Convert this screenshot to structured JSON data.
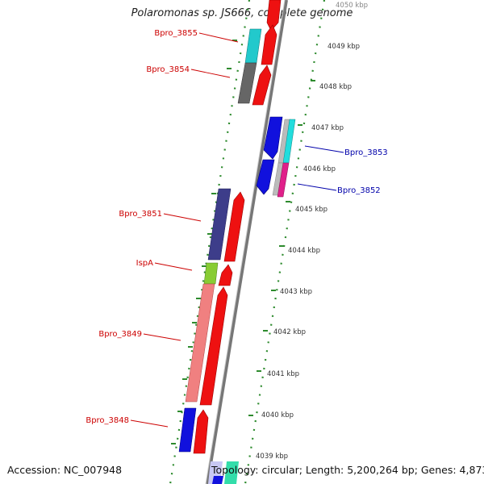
{
  "title": "Polaromonas sp. JS666, complete genome",
  "accession_label": "Accession: NC_007948",
  "summary_label": "Topology: circular; Length: 5,200,264 bp; Genes: 4,873",
  "colors": {
    "forward_cds": "#ee1111",
    "reverse_cds": "#1111dd",
    "backbone": "#888888",
    "gc_ticks": "#2e8b2e",
    "label_forward": "#cc0000",
    "label_reverse": "#0000aa"
  },
  "scale_ticks": [
    "4050 kbp",
    "4049 kbp",
    "4048 kbp",
    "4047 kbp",
    "4046 kbp",
    "4045 kbp",
    "4044 kbp",
    "4043 kbp",
    "4042 kbp",
    "4041 kbp",
    "4040 kbp",
    "4039 kbp"
  ],
  "gene_labels": [
    {
      "name": "Bpro_3855",
      "strand": "forward"
    },
    {
      "name": "Bpro_3854",
      "strand": "forward"
    },
    {
      "name": "Bpro_3853",
      "strand": "reverse"
    },
    {
      "name": "Bpro_3852",
      "strand": "reverse"
    },
    {
      "name": "Bpro_3851",
      "strand": "forward"
    },
    {
      "name": "IspA",
      "strand": "forward"
    },
    {
      "name": "Bpro_3849",
      "strand": "forward"
    },
    {
      "name": "Bpro_3848",
      "strand": "forward"
    }
  ]
}
